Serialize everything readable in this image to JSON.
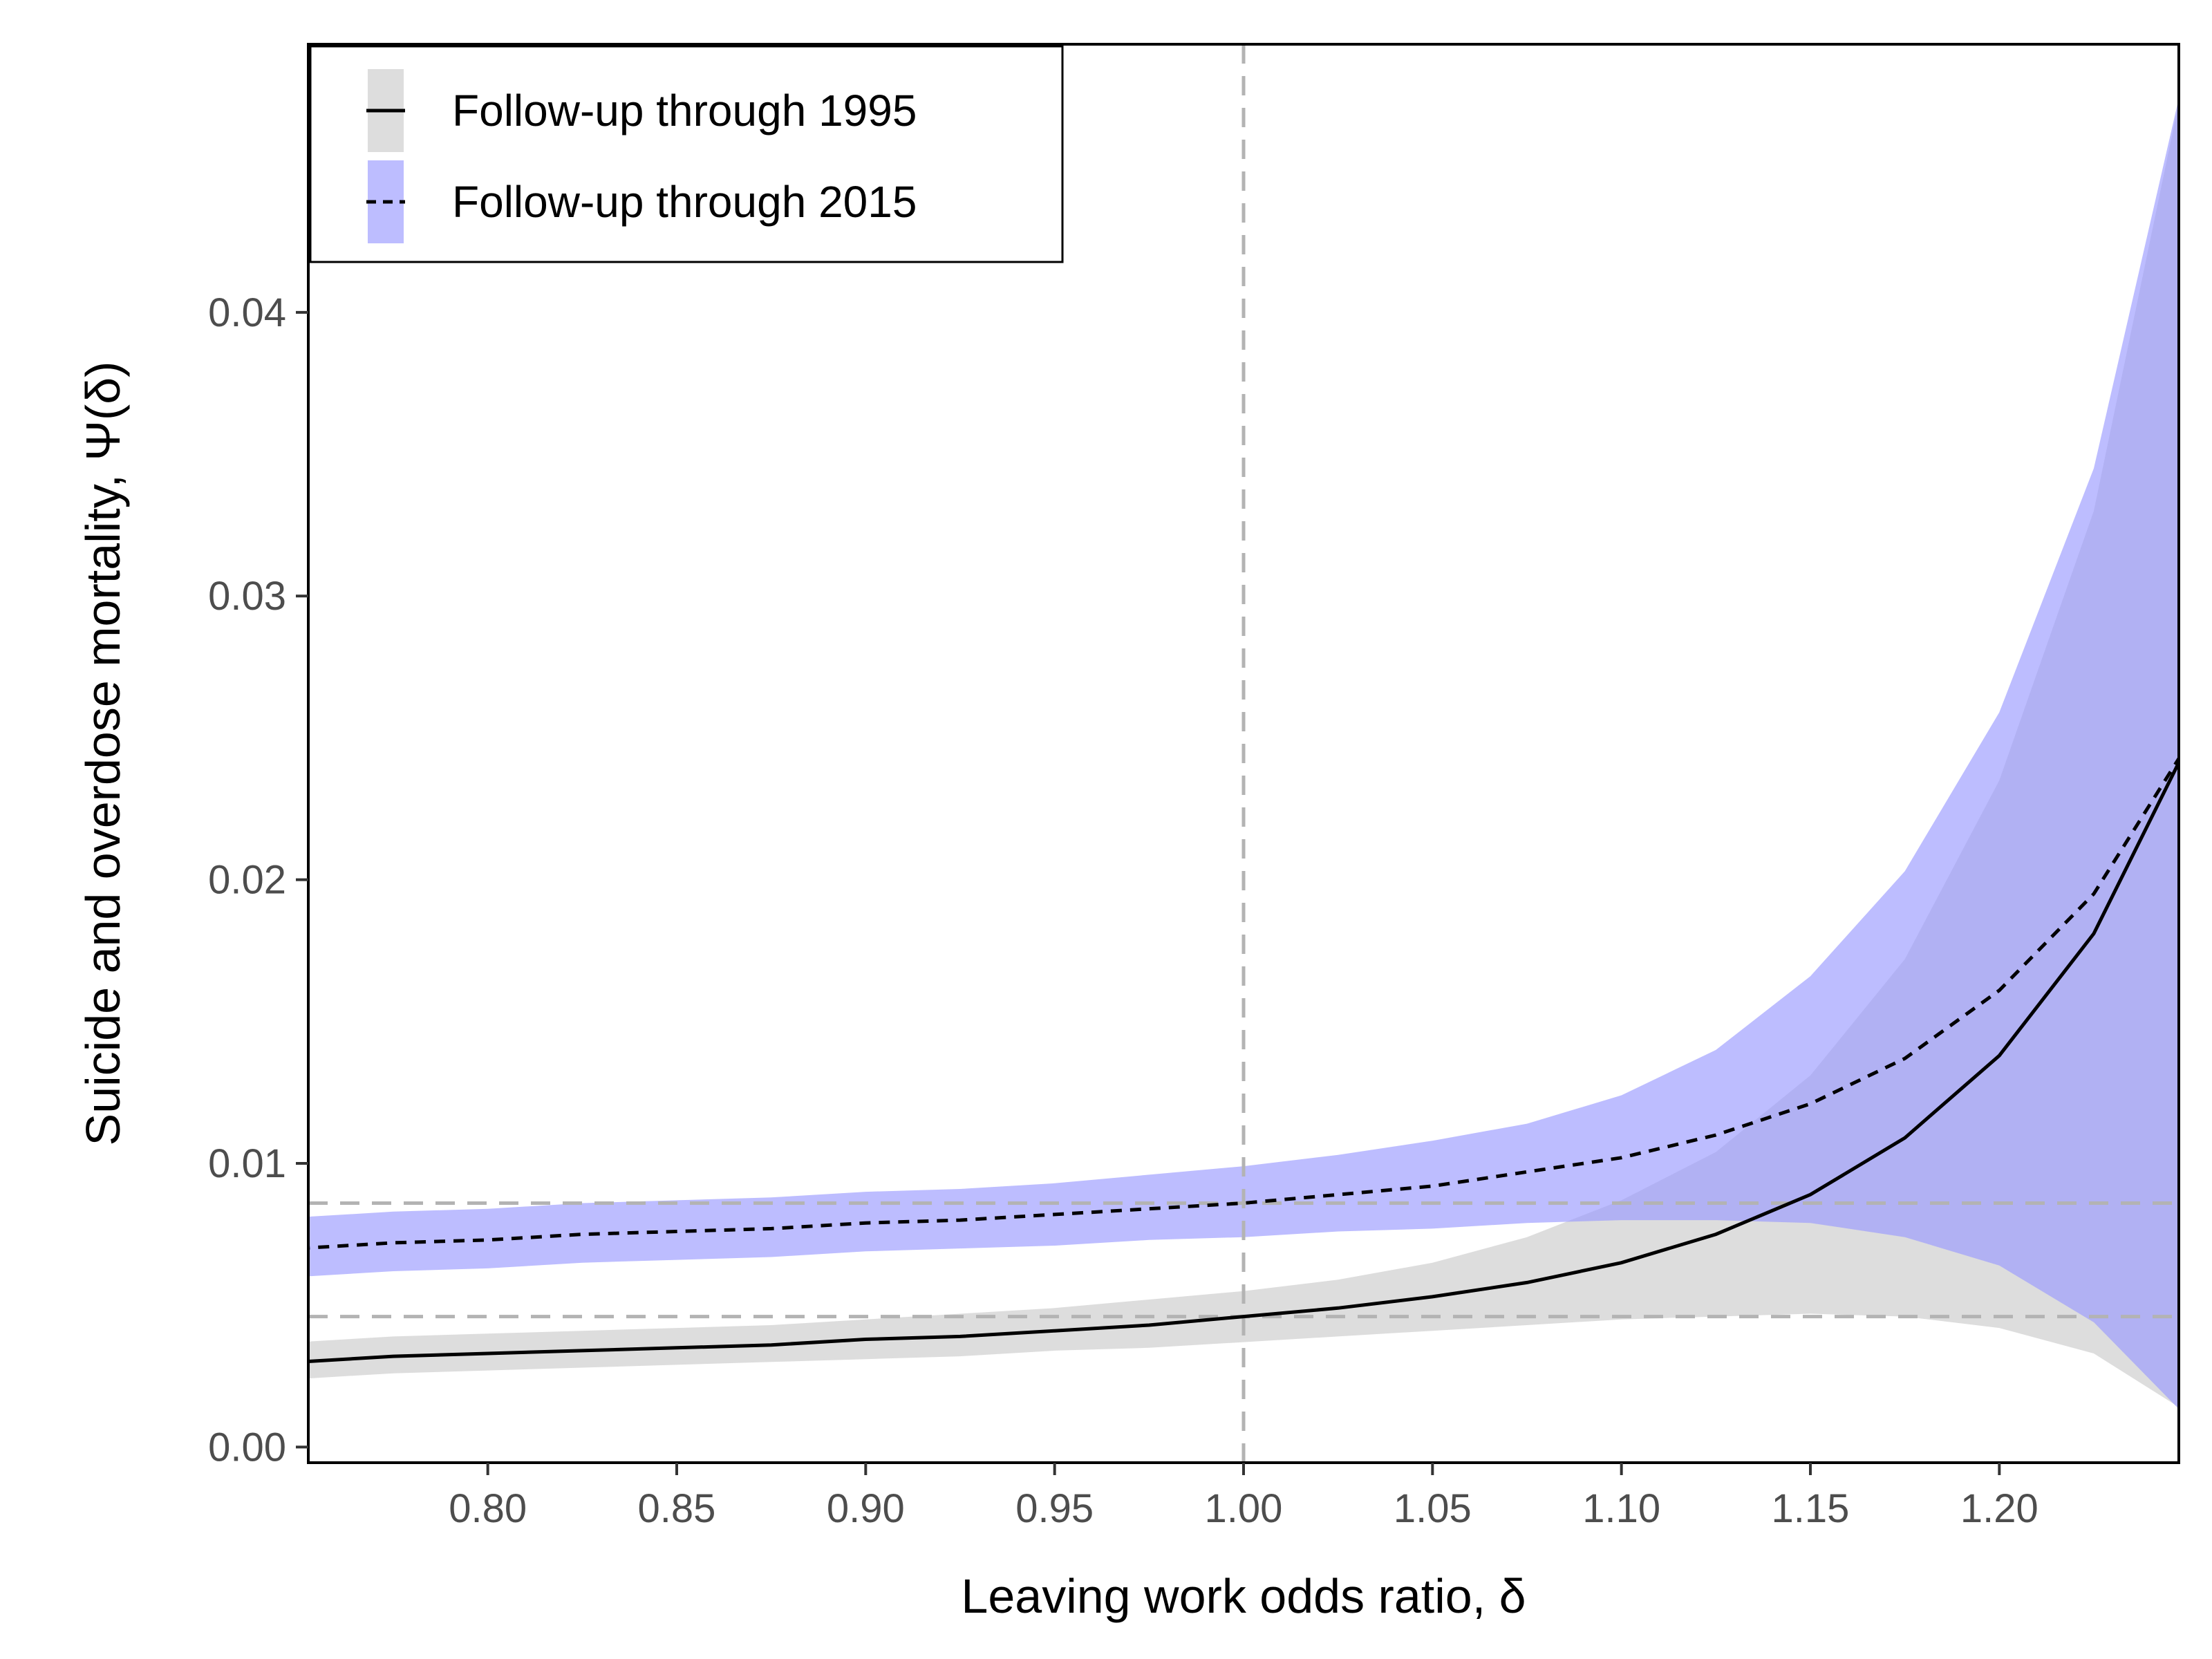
{
  "chart_data": {
    "type": "line",
    "xlabel": "Leaving work odds ratio, δ",
    "ylabel": "Suicide and overdose mortality, Ψ(δ)",
    "xlim": [
      0.7525,
      1.2475
    ],
    "ylim": [
      -0.00055,
      0.04945
    ],
    "xticks": [
      0.8,
      0.85,
      0.9,
      0.95,
      1.0,
      1.05,
      1.1,
      1.15,
      1.2
    ],
    "xtick_labels": [
      "0.80",
      "0.85",
      "0.90",
      "0.95",
      "1.00",
      "1.05",
      "1.10",
      "1.15",
      "1.20"
    ],
    "yticks": [
      0,
      0.01,
      0.02,
      0.03,
      0.04
    ],
    "ytick_labels": [
      "0.00",
      "0.01",
      "0.02",
      "0.03",
      "0.04"
    ],
    "reference_lines": {
      "vertical_x": 1.0,
      "horizontal_y": [
        0.0086,
        0.0046
      ],
      "color": "#b3b3b3",
      "style": "dashed"
    },
    "legend": {
      "placement": "top-left"
    },
    "x": [
      0.75,
      0.775,
      0.8,
      0.825,
      0.85,
      0.875,
      0.9,
      0.925,
      0.95,
      0.975,
      1.0,
      1.025,
      1.05,
      1.075,
      1.1,
      1.125,
      1.15,
      1.175,
      1.2,
      1.225,
      1.25
    ],
    "series": [
      {
        "name": "Follow-up through 1995",
        "line_style": "solid",
        "line_color": "#000000",
        "band_color": "#d9d9d9",
        "band_opacity": 0.9,
        "values": [
          0.003,
          0.0032,
          0.0033,
          0.0034,
          0.0035,
          0.0036,
          0.0038,
          0.0039,
          0.0041,
          0.0043,
          0.0046,
          0.0049,
          0.0053,
          0.0058,
          0.0065,
          0.0075,
          0.0089,
          0.0109,
          0.0138,
          0.0181,
          0.0248
        ],
        "lower": [
          0.0024,
          0.0026,
          0.0027,
          0.0028,
          0.0029,
          0.003,
          0.0031,
          0.0032,
          0.0034,
          0.0035,
          0.0037,
          0.0039,
          0.0041,
          0.0043,
          0.0045,
          0.0046,
          0.0047,
          0.0046,
          0.0042,
          0.0033,
          0.0012
        ],
        "upper": [
          0.0037,
          0.0039,
          0.004,
          0.0041,
          0.0042,
          0.0043,
          0.0045,
          0.0047,
          0.0049,
          0.0052,
          0.0055,
          0.0059,
          0.0065,
          0.0074,
          0.0087,
          0.0104,
          0.0131,
          0.0172,
          0.0235,
          0.033,
          0.049
        ]
      },
      {
        "name": "Follow-up through 2015",
        "line_style": "dashed",
        "line_color": "#000000",
        "band_color": "#9999ff",
        "band_opacity": 0.65,
        "values": [
          0.007,
          0.0072,
          0.0073,
          0.0075,
          0.0076,
          0.0077,
          0.0079,
          0.008,
          0.0082,
          0.0084,
          0.0086,
          0.0089,
          0.0092,
          0.0097,
          0.0102,
          0.011,
          0.0121,
          0.0137,
          0.0161,
          0.0195,
          0.0248
        ],
        "lower": [
          0.006,
          0.0062,
          0.0063,
          0.0065,
          0.0066,
          0.0067,
          0.0069,
          0.007,
          0.0071,
          0.0073,
          0.0074,
          0.0076,
          0.0077,
          0.0079,
          0.008,
          0.008,
          0.0079,
          0.0074,
          0.0064,
          0.0044,
          0.001
        ],
        "upper": [
          0.0081,
          0.0083,
          0.0084,
          0.0086,
          0.0087,
          0.0088,
          0.009,
          0.0091,
          0.0093,
          0.0096,
          0.0099,
          0.0103,
          0.0108,
          0.0114,
          0.0124,
          0.014,
          0.0166,
          0.0203,
          0.0259,
          0.0345,
          0.049
        ]
      }
    ]
  }
}
